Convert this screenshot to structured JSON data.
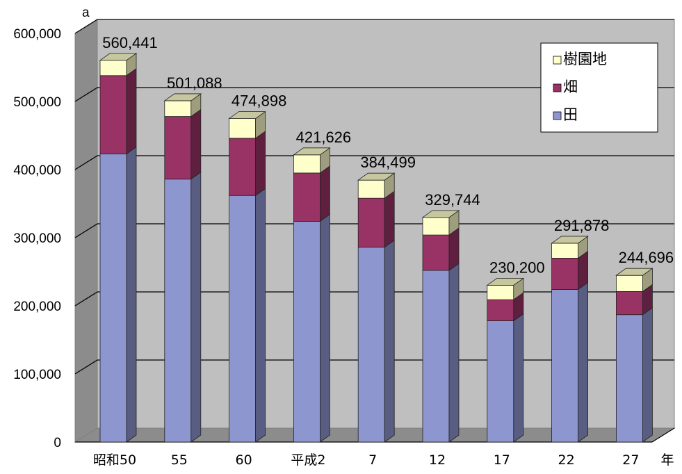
{
  "chart_data": {
    "type": "bar",
    "stacked": true,
    "three_d": true,
    "unit_label": "a",
    "xlabel": "年",
    "categories": [
      "昭和50",
      "55",
      "60",
      "平成2",
      "7",
      "12",
      "17",
      "22",
      "27"
    ],
    "series": [
      {
        "name": "田",
        "color": "#8E96D0",
        "values": [
          423000,
          386000,
          362000,
          324000,
          286000,
          252000,
          178000,
          224000,
          187000
        ]
      },
      {
        "name": "畑",
        "color": "#993366",
        "values": [
          115000,
          92000,
          84000,
          71000,
          72000,
          52000,
          31000,
          46000,
          34000
        ]
      },
      {
        "name": "樹園地",
        "color": "#FFFFCC",
        "values": [
          22441,
          23088,
          28898,
          26626,
          26499,
          25744,
          21200,
          21878,
          23696
        ]
      }
    ],
    "totals": [
      "560,441",
      "501,088",
      "474,898",
      "421,626",
      "384,499",
      "329,744",
      "230,200",
      "291,878",
      "244,696"
    ],
    "y_ticks": [
      "0",
      "100,000",
      "200,000",
      "300,000",
      "400,000",
      "500,000",
      "600,000"
    ],
    "ylim": [
      0,
      600000
    ],
    "grid": true,
    "legend_position": "top-right",
    "legend_order": [
      "樹園地",
      "畑",
      "田"
    ]
  }
}
